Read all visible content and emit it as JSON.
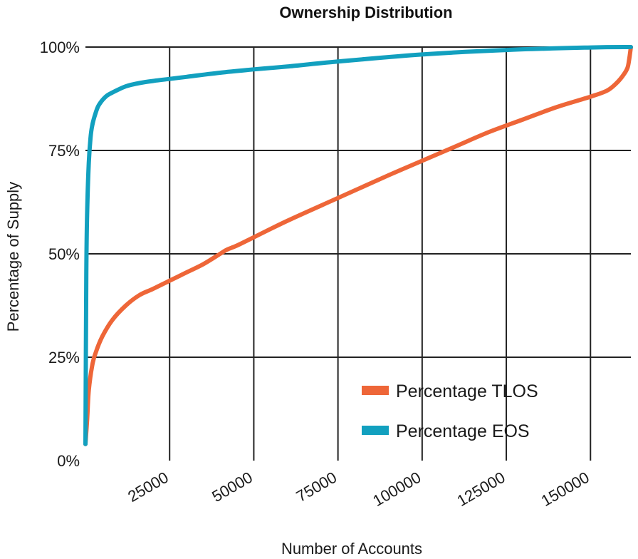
{
  "chart_data": {
    "type": "line",
    "title": "Ownership Distribution",
    "xlabel": "Number of Accounts",
    "ylabel": "Percentage of Supply",
    "xlim": [
      0,
      162000
    ],
    "ylim": [
      0,
      100
    ],
    "x_ticks": [
      25000,
      50000,
      75000,
      100000,
      125000,
      150000
    ],
    "x_tick_labels": [
      "25000",
      "50000",
      "75000",
      "100000",
      "125000",
      "150000"
    ],
    "y_ticks": [
      0,
      25,
      50,
      75,
      100
    ],
    "y_tick_labels": [
      "0%",
      "25%",
      "50%",
      "75%",
      "100%"
    ],
    "grid": true,
    "legend_position": "bottom-right",
    "series": [
      {
        "name": "Percentage TLOS",
        "color": "#ee6638",
        "x": [
          0,
          500,
          1000,
          2000,
          3000,
          5000,
          8000,
          12000,
          16000,
          20000,
          25000,
          30000,
          35000,
          40000,
          42000,
          45000,
          50000,
          60000,
          75000,
          90000,
          100000,
          110000,
          120000,
          130000,
          140000,
          150000,
          155000,
          158000,
          160000,
          161000,
          161500,
          162000
        ],
        "y": [
          4,
          10,
          17,
          23,
          26,
          30,
          34,
          37.5,
          40,
          41.5,
          43.5,
          45.5,
          47.5,
          50,
          51,
          52,
          54,
          58,
          63.5,
          69,
          72.5,
          76,
          79.5,
          82.5,
          85.5,
          88,
          89.5,
          91.5,
          93.5,
          95,
          97,
          100
        ]
      },
      {
        "name": "Percentage EOS",
        "color": "#12a0bf",
        "x": [
          0,
          250,
          500,
          1000,
          1500,
          2000,
          3000,
          4000,
          6000,
          8000,
          12000,
          16000,
          20000,
          25000,
          30000,
          40000,
          50000,
          60000,
          75000,
          100000,
          125000,
          150000,
          162000
        ],
        "y": [
          4,
          45,
          60,
          72,
          78,
          81,
          84,
          86,
          88,
          89,
          90.5,
          91.3,
          91.8,
          92.3,
          92.8,
          93.8,
          94.6,
          95.3,
          96.5,
          98.2,
          99.3,
          99.9,
          100
        ]
      }
    ]
  }
}
